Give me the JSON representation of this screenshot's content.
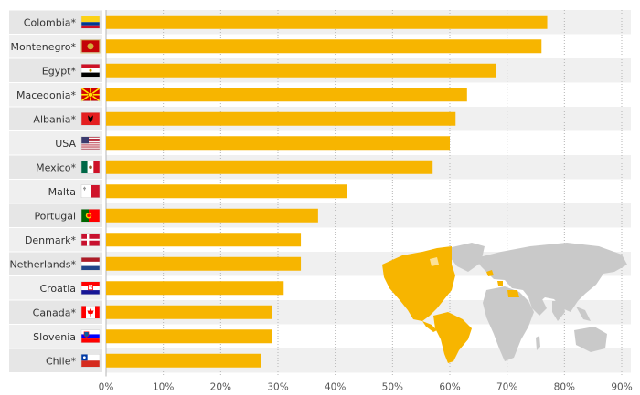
{
  "chart_data": {
    "type": "bar",
    "orientation": "horizontal",
    "categories": [
      "Colombia*",
      "Montenegro*",
      "Egypt*",
      "Macedonia*",
      "Albania*",
      "USA",
      "Mexico*",
      "Malta",
      "Portugal",
      "Denmark*",
      "Netherlands*",
      "Croatia",
      "Canada*",
      "Slovenia",
      "Chile*"
    ],
    "values": [
      77,
      76,
      68,
      63,
      61,
      60,
      57,
      42,
      37,
      34,
      34,
      31,
      29,
      29,
      27
    ],
    "xlim": [
      0,
      90
    ],
    "x_ticks": [
      "0%",
      "10%",
      "20%",
      "30%",
      "40%",
      "50%",
      "60%",
      "70%",
      "80%",
      "90%"
    ],
    "bar_color": "#f7b500",
    "label_band_color": "#e6e6e6",
    "row_band_colors": [
      "#f0f0f0",
      "#ffffff"
    ],
    "grid": "vertical dotted",
    "flags": [
      "flag-colombia",
      "flag-montenegro",
      "flag-egypt",
      "flag-macedonia",
      "flag-albania",
      "flag-usa",
      "flag-mexico",
      "flag-malta",
      "flag-portugal",
      "flag-denmark",
      "flag-netherlands",
      "flag-croatia",
      "flag-canada",
      "flag-slovenia",
      "flag-chile"
    ],
    "decoration": "world map highlighting the Americas in orange"
  }
}
